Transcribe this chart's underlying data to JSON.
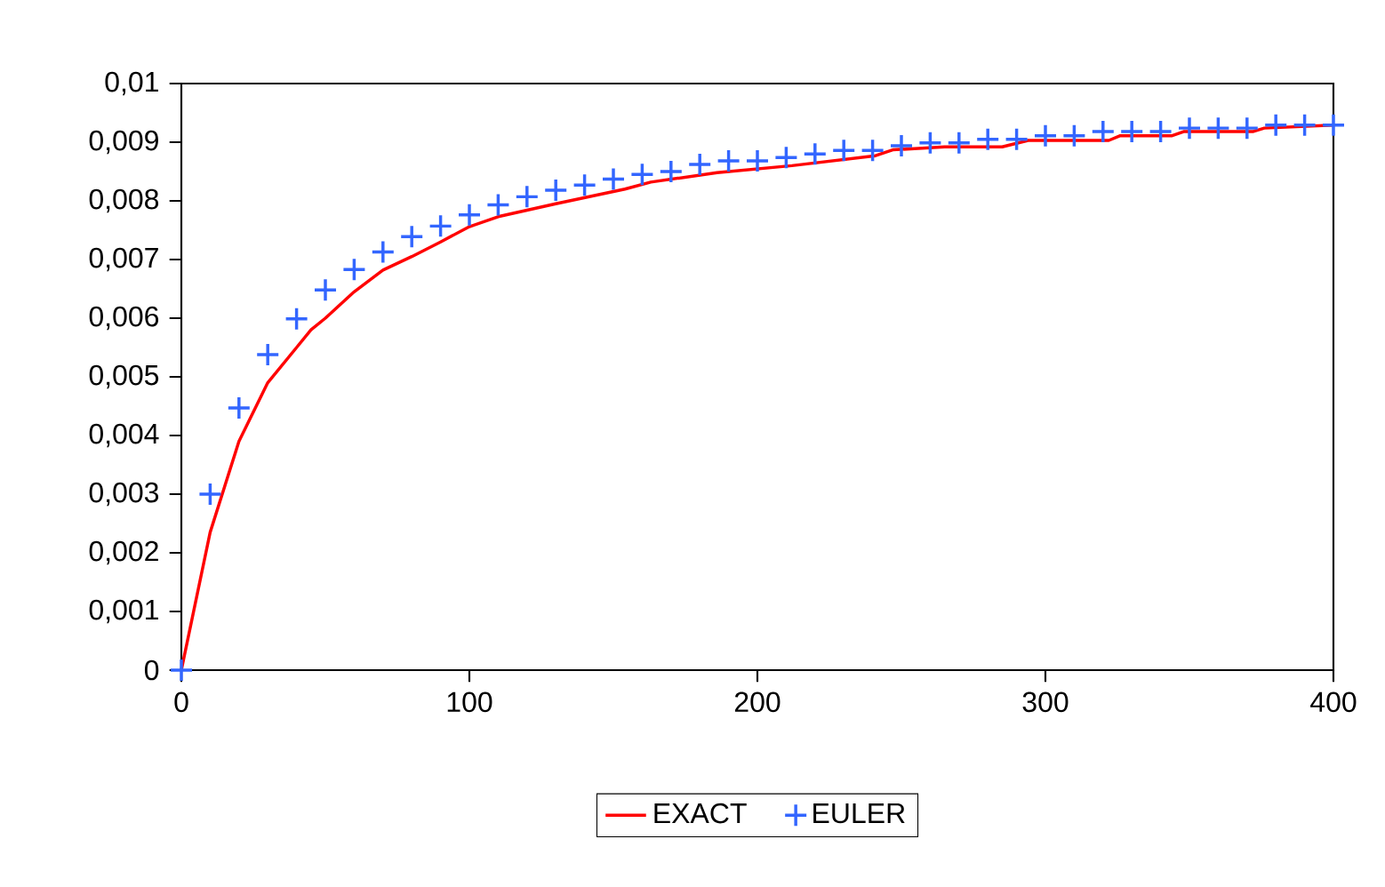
{
  "chart_data": {
    "type": "line",
    "x": [
      0,
      10,
      20,
      30,
      40,
      45,
      50,
      60,
      70,
      80,
      90,
      100,
      110,
      120,
      130,
      154,
      163,
      186,
      212,
      241,
      247,
      265,
      285,
      294,
      322,
      326,
      344,
      348,
      372,
      376,
      400
    ],
    "series": [
      {
        "name": "EXACT",
        "type": "line",
        "color": "#ff0000",
        "marker": "none",
        "line_style": "solid",
        "values": [
          0,
          0.00235,
          0.0039,
          0.0049,
          0.0055,
          0.0058,
          0.006,
          0.00645,
          0.00682,
          0.00705,
          0.0073,
          0.00756,
          0.00773,
          0.00784,
          0.00795,
          0.0082,
          0.00832,
          0.00848,
          0.0086,
          0.00877,
          0.00887,
          0.00892,
          0.00892,
          0.00903,
          0.00903,
          0.00911,
          0.00911,
          0.00918,
          0.00918,
          0.00924,
          0.00929
        ]
      },
      {
        "name": "EULER",
        "type": "scatter",
        "color": "#3366ff",
        "marker": "cross",
        "x": [
          0,
          10,
          20,
          30,
          40,
          50,
          60,
          70,
          80,
          90,
          100,
          110,
          120,
          130,
          140,
          150,
          160,
          170,
          180,
          190,
          200,
          210,
          220,
          230,
          240,
          250,
          260,
          270,
          280,
          290,
          300,
          310,
          320,
          330,
          340,
          350,
          360,
          370,
          380,
          390,
          400
        ],
        "values": [
          0,
          0.003,
          0.00447,
          0.00538,
          0.00599,
          0.00648,
          0.00683,
          0.00713,
          0.00739,
          0.00757,
          0.00776,
          0.00793,
          0.00807,
          0.00818,
          0.00827,
          0.00837,
          0.00845,
          0.0085,
          0.00862,
          0.00868,
          0.00868,
          0.00874,
          0.0088,
          0.00886,
          0.00886,
          0.00894,
          0.00899,
          0.00899,
          0.00905,
          0.00905,
          0.00911,
          0.00911,
          0.00918,
          0.00918,
          0.00918,
          0.00924,
          0.00924,
          0.00924,
          0.00929,
          0.00929,
          0.00929
        ]
      }
    ],
    "xlim": [
      0,
      400
    ],
    "xticks": [
      0,
      100,
      200,
      300,
      400
    ],
    "ylim": [
      0,
      0.01
    ],
    "yticks": [
      {
        "value": 0,
        "label": "0"
      },
      {
        "value": 0.001,
        "label": "0,001"
      },
      {
        "value": 0.002,
        "label": "0,002"
      },
      {
        "value": 0.003,
        "label": "0,003"
      },
      {
        "value": 0.004,
        "label": "0,004"
      },
      {
        "value": 0.005,
        "label": "0,005"
      },
      {
        "value": 0.006,
        "label": "0,006"
      },
      {
        "value": 0.007,
        "label": "0,007"
      },
      {
        "value": 0.008,
        "label": "0,008"
      },
      {
        "value": 0.009,
        "label": "0,009"
      },
      {
        "value": 0.01,
        "label": "0,01"
      }
    ],
    "grid": false,
    "legend": "bottom"
  }
}
